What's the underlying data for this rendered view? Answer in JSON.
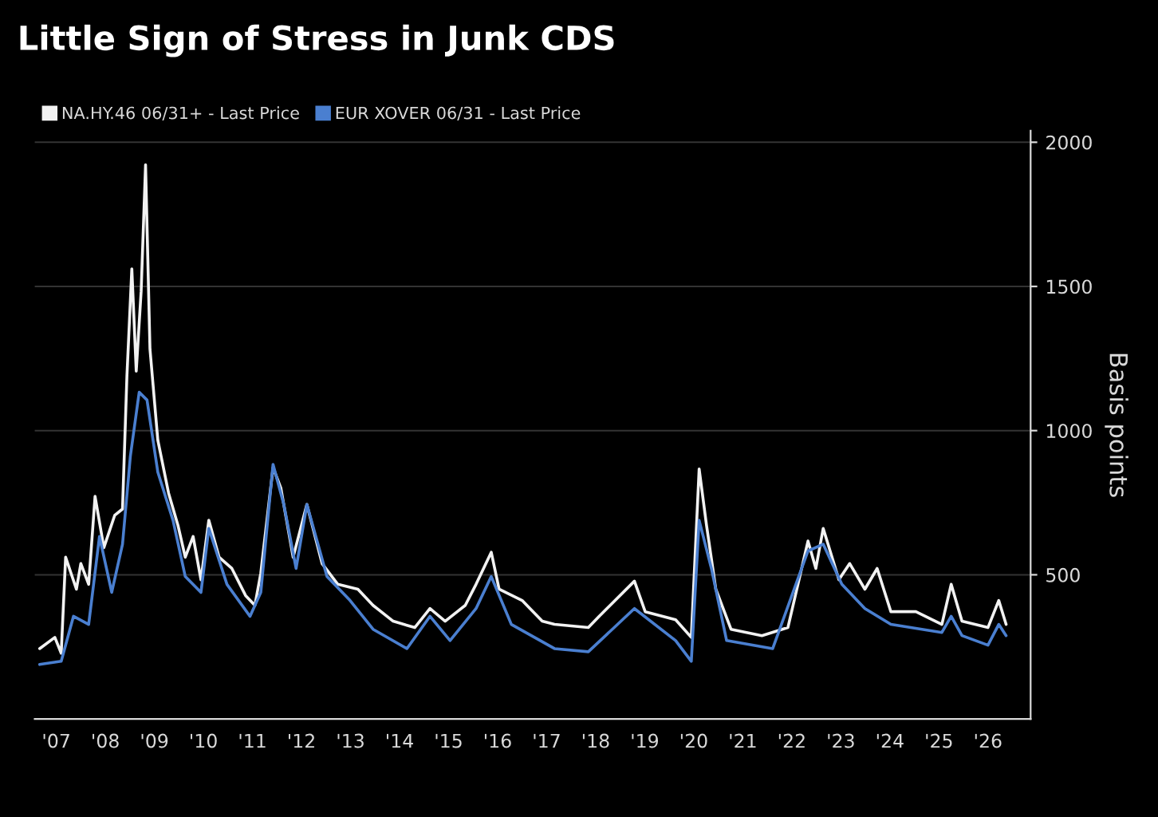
{
  "chart_data": {
    "type": "line",
    "title": "Little Sign of Stress in Junk CDS",
    "ylabel": "Basis points",
    "xlim": [
      2006.56,
      2026.87
    ],
    "ylim": [
      0,
      2040
    ],
    "yticks": [
      500,
      1000,
      1500,
      2000
    ],
    "xticks": [
      {
        "value": 2007,
        "label": "'07"
      },
      {
        "value": 2008,
        "label": "'08"
      },
      {
        "value": 2009,
        "label": "'09"
      },
      {
        "value": 2010,
        "label": "'10"
      },
      {
        "value": 2011,
        "label": "'11"
      },
      {
        "value": 2012,
        "label": "'12"
      },
      {
        "value": 2013,
        "label": "'13"
      },
      {
        "value": 2014,
        "label": "'14"
      },
      {
        "value": 2015,
        "label": "'15"
      },
      {
        "value": 2016,
        "label": "'16"
      },
      {
        "value": 2017,
        "label": "'17"
      },
      {
        "value": 2018,
        "label": "'18"
      },
      {
        "value": 2019,
        "label": "'19"
      },
      {
        "value": 2020,
        "label": "'20"
      },
      {
        "value": 2021,
        "label": "'21"
      },
      {
        "value": 2022,
        "label": "'22"
      },
      {
        "value": 2023,
        "label": "'23"
      },
      {
        "value": 2024,
        "label": "'24"
      },
      {
        "value": 2025,
        "label": "'25"
      },
      {
        "value": 2026,
        "label": "'26"
      }
    ],
    "grid": "y",
    "legend": "top left",
    "line_style": "solid",
    "marker": "none",
    "series": [
      {
        "name": "NA.HY.46 06/31+ - Last Price",
        "color": "#f2f2f2",
        "x": [
          2006.66,
          2006.97,
          2007.1,
          2007.19,
          2007.41,
          2007.5,
          2007.66,
          2007.79,
          2007.97,
          2008.19,
          2008.35,
          2008.44,
          2008.54,
          2008.63,
          2008.73,
          2008.82,
          2008.91,
          2009.07,
          2009.29,
          2009.48,
          2009.63,
          2009.79,
          2009.95,
          2010.11,
          2010.32,
          2010.58,
          2010.86,
          2011.05,
          2011.17,
          2011.42,
          2011.58,
          2011.83,
          2012.11,
          2012.42,
          2012.74,
          2013.15,
          2013.46,
          2013.87,
          2014.31,
          2014.62,
          2014.93,
          2015.34,
          2015.56,
          2015.87,
          2016.03,
          2016.5,
          2016.91,
          2017.16,
          2017.85,
          2018.07,
          2018.79,
          2019.01,
          2019.63,
          2019.95,
          2020.11,
          2020.26,
          2020.45,
          2020.76,
          2021.39,
          2021.92,
          2022.33,
          2022.49,
          2022.64,
          2022.96,
          2023.18,
          2023.49,
          2023.74,
          2024.02,
          2024.53,
          2025.06,
          2025.25,
          2025.47,
          2026.0,
          2026.22,
          2026.37
        ],
        "values": [
          244,
          283,
          228,
          561,
          450,
          539,
          467,
          772,
          594,
          706,
          728,
          1189,
          1561,
          1206,
          1483,
          1922,
          1283,
          967,
          783,
          672,
          561,
          633,
          483,
          689,
          561,
          522,
          428,
          394,
          506,
          872,
          800,
          561,
          744,
          539,
          467,
          450,
          394,
          339,
          317,
          383,
          339,
          394,
          467,
          578,
          450,
          411,
          339,
          328,
          317,
          356,
          478,
          372,
          344,
          283,
          867,
          672,
          450,
          311,
          289,
          317,
          617,
          522,
          661,
          483,
          539,
          450,
          522,
          372,
          372,
          328,
          467,
          339,
          317,
          411,
          328
        ]
      },
      {
        "name": "EUR XOVER 06/31 - Last Price",
        "color": "#4a7fd0",
        "x": [
          2006.66,
          2007.1,
          2007.35,
          2007.66,
          2007.88,
          2008.13,
          2008.35,
          2008.51,
          2008.69,
          2008.85,
          2009.07,
          2009.38,
          2009.63,
          2009.95,
          2010.11,
          2010.48,
          2010.95,
          2011.17,
          2011.42,
          2011.64,
          2011.89,
          2012.11,
          2012.52,
          2012.99,
          2013.46,
          2014.15,
          2014.62,
          2015.03,
          2015.56,
          2015.87,
          2016.28,
          2017.16,
          2017.85,
          2018.79,
          2019.63,
          2019.95,
          2020.11,
          2020.36,
          2020.67,
          2021.61,
          2022.33,
          2022.64,
          2023.02,
          2023.49,
          2024.02,
          2025.06,
          2025.25,
          2025.47,
          2026.0,
          2026.22,
          2026.37
        ],
        "values": [
          189,
          200,
          356,
          328,
          633,
          439,
          606,
          911,
          1133,
          1106,
          856,
          689,
          494,
          439,
          661,
          467,
          356,
          439,
          883,
          744,
          522,
          744,
          494,
          411,
          311,
          244,
          356,
          272,
          383,
          494,
          328,
          244,
          233,
          383,
          272,
          200,
          689,
          522,
          272,
          244,
          583,
          606,
          467,
          383,
          328,
          300,
          356,
          289,
          256,
          328,
          289
        ]
      }
    ]
  }
}
